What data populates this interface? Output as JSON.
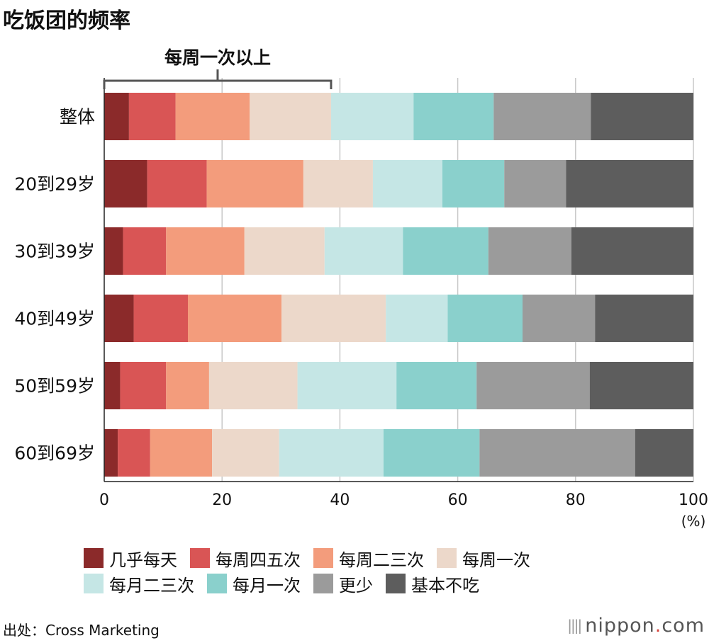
{
  "title": "吃饭团的频率",
  "chart_data": {
    "type": "bar",
    "orientation": "horizontal",
    "stacked": true,
    "title": "吃饭团的频率",
    "bracket_label": "每周一次以上",
    "bracket_range": [
      0,
      38.5
    ],
    "categories": [
      "整体",
      "20到29岁",
      "30到39岁",
      "40到49岁",
      "50到59岁",
      "60到69岁"
    ],
    "series": [
      {
        "name": "几乎每天",
        "color": "#8b2a2a",
        "values": [
          4.2,
          7.3,
          3.2,
          5.0,
          2.7,
          2.3
        ]
      },
      {
        "name": "每周四五次",
        "color": "#d95555",
        "values": [
          7.9,
          10.1,
          7.3,
          9.2,
          7.8,
          5.5
        ]
      },
      {
        "name": "每周二三次",
        "color": "#f39c7c",
        "values": [
          12.6,
          16.4,
          13.3,
          15.9,
          7.3,
          10.5
        ]
      },
      {
        "name": "每周一次",
        "color": "#ecd8ca",
        "values": [
          13.8,
          11.8,
          13.6,
          17.7,
          15.0,
          11.4
        ]
      },
      {
        "name": "每月二三次",
        "color": "#c5e6e5",
        "values": [
          14.0,
          11.8,
          13.3,
          10.5,
          16.8,
          17.7
        ]
      },
      {
        "name": "每月一次",
        "color": "#8ad0cc",
        "values": [
          13.6,
          10.5,
          14.5,
          12.7,
          13.6,
          16.3
        ]
      },
      {
        "name": "更少",
        "color": "#9b9b9b",
        "values": [
          16.5,
          10.5,
          14.1,
          12.3,
          19.2,
          26.4
        ]
      },
      {
        "name": "基本不吃",
        "color": "#5d5d5d",
        "values": [
          17.4,
          21.6,
          20.7,
          16.7,
          17.6,
          9.9
        ]
      }
    ],
    "xlim": [
      0,
      100
    ],
    "xticks": [
      "0",
      "20",
      "40",
      "60",
      "80",
      "100"
    ],
    "xunit": "(%)",
    "grid": true,
    "legend_position": "bottom"
  },
  "source": "出处：Cross Marketing",
  "brand": {
    "name": "nippon",
    "dot": ".",
    "tld": "com"
  }
}
